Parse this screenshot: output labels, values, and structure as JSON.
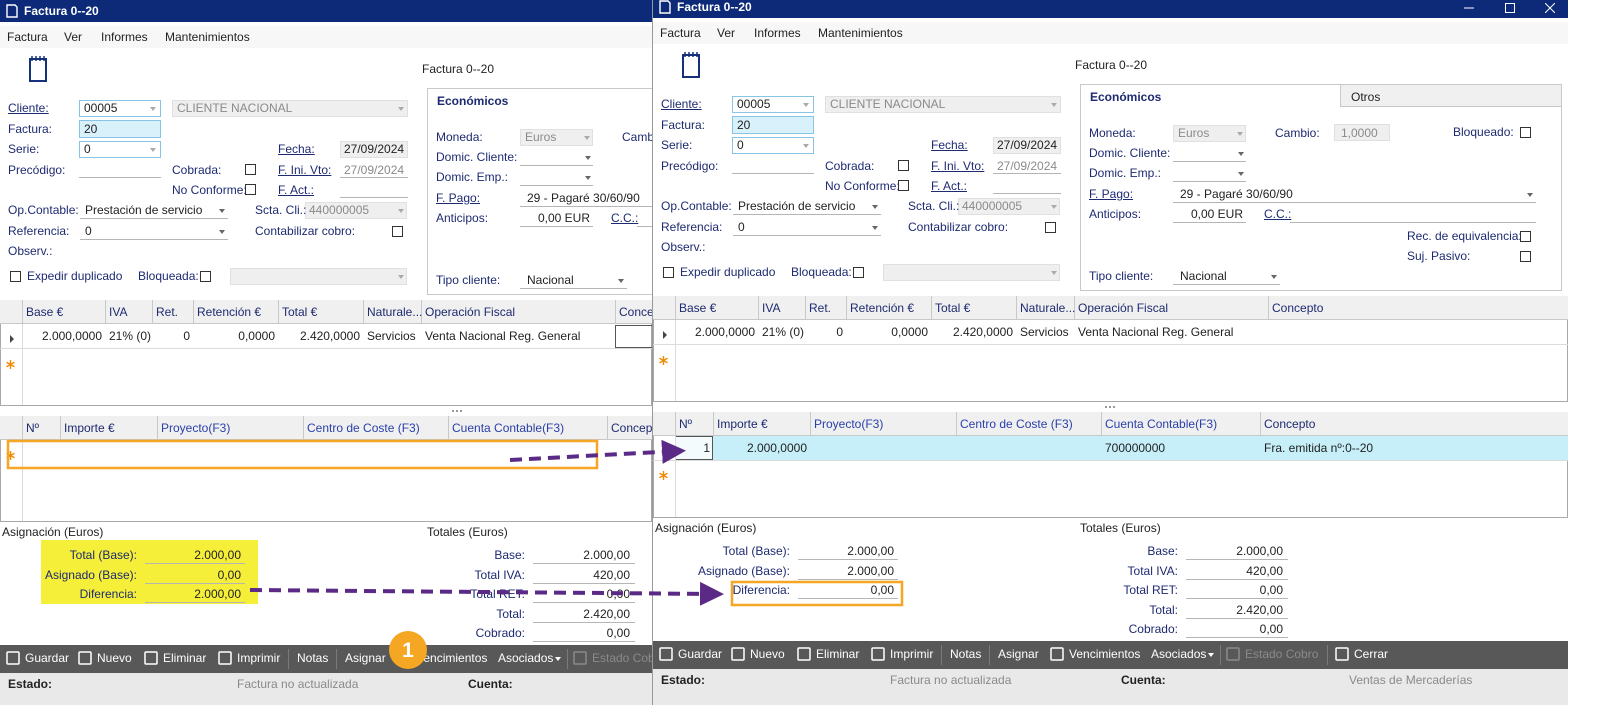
{
  "left_window": {
    "title": "Factura 0--20",
    "menu": [
      "Factura",
      "Ver",
      "Informes",
      "Mantenimientos"
    ],
    "document": "Factura 0--20",
    "form": {
      "cliente_label": "Cliente:",
      "cliente_code": "00005",
      "cliente_name": "CLIENTE NACIONAL",
      "factura_label": "Factura:",
      "factura_value": "20",
      "serie_label": "Serie:",
      "serie_value": "0",
      "precodigo_label": "Precódigo:",
      "cobrada_label": "Cobrada:",
      "no_conforme_label": "No Conforme:",
      "fecha_label": "Fecha:",
      "fecha_value": "27/09/2024",
      "f_ini_vto_label": "F. Ini. Vto:",
      "f_ini_vto_value": "27/09/2024",
      "f_act_label": "F. Act.:",
      "op_contable_label": "Op.Contable:",
      "op_contable_value": "Prestación de servicio",
      "scta_cli_label": "Scta. Cli.:",
      "scta_cli_value": "440000005",
      "referencia_label": "Referencia:",
      "referencia_value": "0",
      "contabilizar_label": "Contabilizar cobro:",
      "observ_label": "Observ.:",
      "expedir_label": "Expedir duplicado",
      "bloqueada_label": "Bloqueada:"
    },
    "economicos": {
      "tab": "Económicos",
      "moneda_label": "Moneda:",
      "moneda_value": "Euros",
      "cambio_label": "Camb",
      "domic_cliente_label": "Domic. Cliente:",
      "domic_emp_label": "Domic. Emp.:",
      "f_pago_label": "F. Pago:",
      "f_pago_value": "29 - Pagaré 30/60/90",
      "anticipos_label": "Anticipos:",
      "anticipos_value": "0,00 EUR",
      "cc_label": "C.C.:",
      "tipo_cliente_label": "Tipo cliente:",
      "tipo_cliente_value": "Nacional"
    },
    "lines": {
      "columns": [
        "Base €",
        "IVA",
        "Ret.",
        "Retención €",
        "Total €",
        "Naturale...",
        "Operación Fiscal",
        "Conce"
      ],
      "rows": [
        [
          "2.000,0000",
          "21% (0)",
          "0",
          "0,0000",
          "2.420,0000",
          "Servicios",
          "Venta Nacional Reg. General"
        ]
      ]
    },
    "allocations": {
      "columns": [
        "Nº",
        "Importe €",
        "Proyecto(F3)",
        "Centro de Coste (F3)",
        "Cuenta Contable(F3)",
        "Concept"
      ],
      "rows": []
    },
    "asignacion": {
      "title": "Asignación (Euros)",
      "rows": [
        {
          "label": "Total (Base):",
          "value": "2.000,00"
        },
        {
          "label": "Asignado (Base):",
          "value": "0,00"
        },
        {
          "label": "Diferencia:",
          "value": "2.000,00"
        }
      ]
    },
    "totales": {
      "title": "Totales (Euros)",
      "rows": [
        {
          "label": "Base:",
          "value": "2.000,00"
        },
        {
          "label": "Total IVA:",
          "value": "420,00"
        },
        {
          "label": "Total RET:",
          "value": "0,00"
        },
        {
          "label": "Total:",
          "value": "2.420,00"
        },
        {
          "label": "Cobrado:",
          "value": "0,00"
        }
      ]
    },
    "toolbar": [
      "Guardar",
      "Nuevo",
      "Eliminar",
      "Imprimir",
      "Notas",
      "Asignar",
      "Vencimientos",
      "Asociados",
      "Estado Cob"
    ],
    "status": {
      "estado_label": "Estado:",
      "estado_value": "Factura no actualizada",
      "cuenta_label": "Cuenta:"
    }
  },
  "right_window": {
    "title": "Factura 0--20",
    "menu": [
      "Factura",
      "Ver",
      "Informes",
      "Mantenimientos"
    ],
    "document": "Factura 0--20",
    "form": {
      "cliente_label": "Cliente:",
      "cliente_code": "00005",
      "cliente_name": "CLIENTE NACIONAL",
      "factura_label": "Factura:",
      "factura_value": "20",
      "serie_label": "Serie:",
      "serie_value": "0",
      "precodigo_label": "Precódigo:",
      "cobrada_label": "Cobrada:",
      "no_conforme_label": "No Conforme:",
      "fecha_label": "Fecha:",
      "fecha_value": "27/09/2024",
      "f_ini_vto_label": "F. Ini. Vto:",
      "f_ini_vto_value": "27/09/2024",
      "f_act_label": "F. Act.:",
      "op_contable_label": "Op.Contable:",
      "op_contable_value": "Prestación de servicio",
      "scta_cli_label": "Scta. Cli.:",
      "scta_cli_value": "440000005",
      "referencia_label": "Referencia:",
      "referencia_value": "0",
      "contabilizar_label": "Contabilizar cobro:",
      "observ_label": "Observ.:",
      "expedir_label": "Expedir duplicado",
      "bloqueada_label": "Bloqueada:"
    },
    "economicos": {
      "tab": "Económicos",
      "otros_tab": "Otros",
      "moneda_label": "Moneda:",
      "moneda_value": "Euros",
      "cambio_label": "Cambio:",
      "cambio_value": "1,0000",
      "bloqueado_label": "Bloqueado:",
      "domic_cliente_label": "Domic. Cliente:",
      "domic_emp_label": "Domic. Emp.:",
      "f_pago_label": "F. Pago:",
      "f_pago_value": "29 - Pagaré 30/60/90",
      "anticipos_label": "Anticipos:",
      "anticipos_value": "0,00 EUR",
      "cc_label": "C.C.:",
      "rec_label": "Rec. de equivalencia:",
      "suj_label": "Suj. Pasivo:",
      "tipo_cliente_label": "Tipo cliente:",
      "tipo_cliente_value": "Nacional"
    },
    "lines": {
      "columns": [
        "Base €",
        "IVA",
        "Ret.",
        "Retención €",
        "Total €",
        "Naturale...",
        "Operación Fiscal",
        "Concepto"
      ],
      "rows": [
        [
          "2.000,0000",
          "21% (0)",
          "0",
          "0,0000",
          "2.420,0000",
          "Servicios",
          "Venta Nacional Reg. General"
        ]
      ]
    },
    "allocations": {
      "columns": [
        "Nº",
        "Importe €",
        "Proyecto(F3)",
        "Centro de Coste (F3)",
        "Cuenta Contable(F3)",
        "Concepto"
      ],
      "rows": [
        {
          "n": "1",
          "importe": "2.000,0000",
          "cuenta": "700000000",
          "concepto": "Fra. emitida nº:0--20"
        }
      ]
    },
    "asignacion": {
      "title": "Asignación (Euros)",
      "rows": [
        {
          "label": "Total (Base):",
          "value": "2.000,00"
        },
        {
          "label": "Asignado (Base):",
          "value": "2.000,00"
        },
        {
          "label": "Diferencia:",
          "value": "0,00"
        }
      ]
    },
    "totales": {
      "title": "Totales (Euros)",
      "rows": [
        {
          "label": "Base:",
          "value": "2.000,00"
        },
        {
          "label": "Total IVA:",
          "value": "420,00"
        },
        {
          "label": "Total RET:",
          "value": "0,00"
        },
        {
          "label": "Total:",
          "value": "2.420,00"
        },
        {
          "label": "Cobrado:",
          "value": "0,00"
        }
      ]
    },
    "toolbar": [
      "Guardar",
      "Nuevo",
      "Eliminar",
      "Imprimir",
      "Notas",
      "Asignar",
      "Vencimientos",
      "Asociados",
      "Estado Cobro",
      "Cerrar"
    ],
    "status": {
      "estado_label": "Estado:",
      "estado_value": "Factura no actualizada",
      "cuenta_label": "Cuenta:",
      "cuenta_value": "Ventas de Mercaderías"
    }
  },
  "annotation": {
    "badge": "1"
  }
}
